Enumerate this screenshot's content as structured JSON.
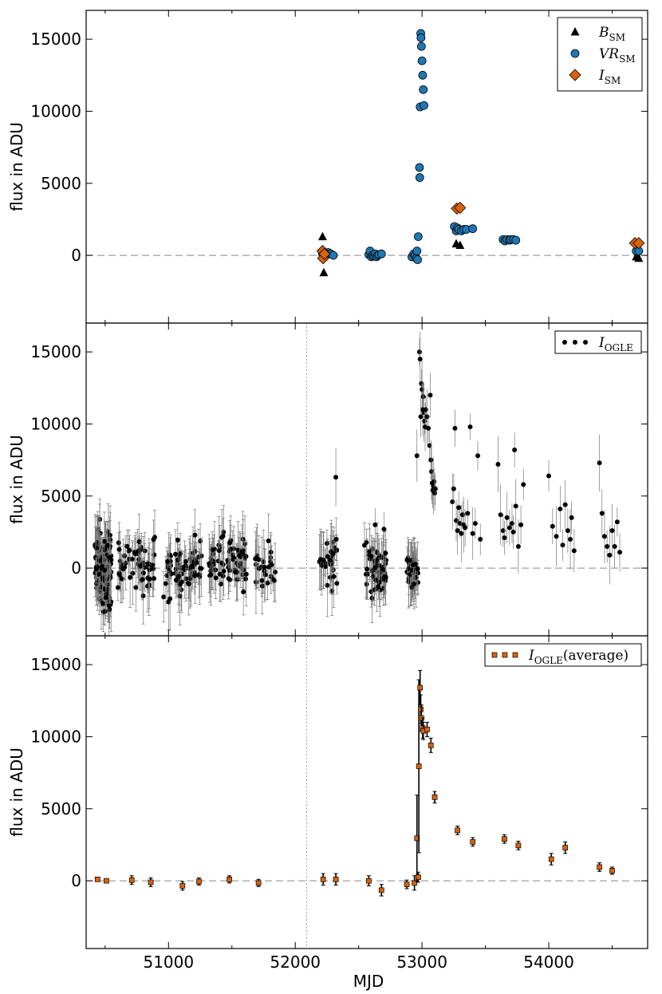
{
  "figure": {
    "xlabel": "MJD",
    "ylabel": "flux in ADU"
  },
  "colors": {
    "vr": "#1f77b4",
    "i_sm": "#d9620b",
    "b_sm": "#000000",
    "ogle": "#000000",
    "ogle_avg": "#d9620b"
  },
  "chart_data": [
    {
      "type": "scatter",
      "panel": "top",
      "xlim": [
        50350,
        54780
      ],
      "ylim": [
        -4700,
        17000
      ],
      "xticks": [
        51000,
        52000,
        53000,
        54000
      ],
      "yticks": [
        0,
        5000,
        10000,
        15000
      ],
      "ylabel": "flux in ADU",
      "grid": false,
      "legend_position": "top-right",
      "reference_lines": [
        {
          "orientation": "horizontal",
          "value": 0,
          "style": "dashed"
        }
      ],
      "series": [
        {
          "name": "B",
          "name_sub": "SM",
          "marker": "triangle",
          "color": "#000000",
          "points": [
            [
              52215,
              1300
            ],
            [
              52225,
              -1200
            ],
            [
              53270,
              800
            ],
            [
              53300,
              700
            ],
            [
              54690,
              -100
            ],
            [
              54710,
              -200
            ]
          ]
        },
        {
          "name": "VR",
          "name_sub": "SM",
          "marker": "circle",
          "color": "#1f77b4",
          "points": [
            [
              52215,
              100
            ],
            [
              52230,
              -100
            ],
            [
              52260,
              200
            ],
            [
              52280,
              100
            ],
            [
              52300,
              0
            ],
            [
              52580,
              50
            ],
            [
              52590,
              300
            ],
            [
              52600,
              -100
            ],
            [
              52610,
              0
            ],
            [
              52620,
              -50
            ],
            [
              52630,
              100
            ],
            [
              52640,
              -100
            ],
            [
              52650,
              0
            ],
            [
              52660,
              50
            ],
            [
              52680,
              100
            ],
            [
              52920,
              -100
            ],
            [
              52935,
              100
            ],
            [
              52945,
              0
            ],
            [
              52955,
              -200
            ],
            [
              52960,
              300
            ],
            [
              52965,
              -300
            ],
            [
              52970,
              1300
            ],
            [
              52980,
              6100
            ],
            [
              52982,
              5400
            ],
            [
              52985,
              10300
            ],
            [
              52990,
              15400
            ],
            [
              52992,
              15100
            ],
            [
              52995,
              14500
            ],
            [
              53000,
              13500
            ],
            [
              53005,
              12500
            ],
            [
              53010,
              11500
            ],
            [
              53015,
              10400
            ],
            [
              53255,
              2000
            ],
            [
              53270,
              1700
            ],
            [
              53280,
              1900
            ],
            [
              53290,
              1800
            ],
            [
              53310,
              1700
            ],
            [
              53330,
              1800
            ],
            [
              53350,
              1800
            ],
            [
              53400,
              1850
            ],
            [
              53640,
              1100
            ],
            [
              53655,
              1000
            ],
            [
              53670,
              1100
            ],
            [
              53690,
              1050
            ],
            [
              53700,
              1100
            ],
            [
              53720,
              1100
            ],
            [
              53740,
              1050
            ],
            [
              54690,
              300
            ],
            [
              54710,
              300
            ]
          ]
        },
        {
          "name": "I",
          "name_sub": "SM",
          "marker": "diamond",
          "color": "#d9620b",
          "points": [
            [
              52215,
              300
            ],
            [
              52220,
              -200
            ],
            [
              52230,
              100
            ],
            [
              53275,
              3250
            ],
            [
              53300,
              3300
            ],
            [
              54680,
              850
            ],
            [
              54710,
              850
            ]
          ]
        }
      ]
    },
    {
      "type": "scatter",
      "panel": "middle",
      "xlim": [
        50350,
        54780
      ],
      "ylim": [
        -4700,
        17000
      ],
      "xticks": [
        51000,
        52000,
        53000,
        54000
      ],
      "yticks": [
        0,
        5000,
        10000,
        15000
      ],
      "ylabel": "flux in ADU",
      "grid": false,
      "legend_position": "top-right",
      "reference_lines": [
        {
          "orientation": "horizontal",
          "value": 0,
          "style": "dashed"
        },
        {
          "orientation": "vertical",
          "value": 52090,
          "style": "dotted"
        }
      ],
      "series": [
        {
          "name": "I",
          "name_sub": "OGLE",
          "marker": "circle",
          "color": "#000000",
          "error_bars": true,
          "seasons": [
            {
              "x": [
                50420,
                50550
              ],
              "center": 0,
              "spread": 2600,
              "n": 150
            },
            {
              "x": [
                50600,
                50900
              ],
              "center": 200,
              "spread": 1800,
              "n": 60
            },
            {
              "x": [
                50960,
                51260
              ],
              "center": 0,
              "spread": 1800,
              "n": 70
            },
            {
              "x": [
                51320,
                51620
              ],
              "center": 500,
              "spread": 1800,
              "n": 70
            },
            {
              "x": [
                51680,
                51850
              ],
              "center": 0,
              "spread": 1500,
              "n": 25
            },
            {
              "x": [
                52190,
                52330
              ],
              "center": 200,
              "spread": 1600,
              "n": 35
            },
            {
              "x": [
                52540,
                52720
              ],
              "center": -300,
              "spread": 1800,
              "n": 55
            },
            {
              "x": [
                52880,
                52970
              ],
              "center": -300,
              "spread": 1200,
              "n": 40
            }
          ],
          "points": [
            [
              52320,
              6300
            ],
            [
              52630,
              3000
            ],
            [
              52700,
              2700
            ],
            [
              52960,
              7800
            ],
            [
              52980,
              15000
            ],
            [
              52985,
              14500
            ],
            [
              52995,
              12800
            ],
            [
              53000,
              12400
            ],
            [
              53010,
              11900
            ],
            [
              53005,
              11000
            ],
            [
              52990,
              10500
            ],
            [
              53015,
              10800
            ],
            [
              53020,
              10200
            ],
            [
              53025,
              9800
            ],
            [
              53030,
              11000
            ],
            [
              53040,
              10500
            ],
            [
              53050,
              9700
            ],
            [
              53060,
              8500
            ],
            [
              53065,
              12000
            ],
            [
              53070,
              7500
            ],
            [
              53075,
              6700
            ],
            [
              53080,
              5900
            ],
            [
              53085,
              5400
            ],
            [
              53090,
              5700
            ],
            [
              53095,
              6000
            ],
            [
              53100,
              5200
            ],
            [
              53105,
              5500
            ],
            [
              53240,
              4600
            ],
            [
              53250,
              5500
            ],
            [
              53260,
              9700
            ],
            [
              53270,
              3300
            ],
            [
              53280,
              2600
            ],
            [
              53290,
              4200
            ],
            [
              53300,
              3100
            ],
            [
              53310,
              2400
            ],
            [
              53320,
              3700
            ],
            [
              53330,
              3000
            ],
            [
              53340,
              2800
            ],
            [
              53360,
              3800
            ],
            [
              53380,
              9800
            ],
            [
              53400,
              2400
            ],
            [
              53420,
              3100
            ],
            [
              53440,
              7800
            ],
            [
              53460,
              2000
            ],
            [
              53600,
              7200
            ],
            [
              53620,
              3700
            ],
            [
              53640,
              2600
            ],
            [
              53650,
              2100
            ],
            [
              53670,
              3500
            ],
            [
              53690,
              2800
            ],
            [
              53710,
              3100
            ],
            [
              53720,
              2500
            ],
            [
              53730,
              8200
            ],
            [
              53740,
              4300
            ],
            [
              53760,
              1500
            ],
            [
              53780,
              3000
            ],
            [
              53800,
              5800
            ],
            [
              54000,
              6400
            ],
            [
              54030,
              2900
            ],
            [
              54060,
              2200
            ],
            [
              54090,
              4100
            ],
            [
              54110,
              1600
            ],
            [
              54130,
              4400
            ],
            [
              54150,
              2600
            ],
            [
              54170,
              2000
            ],
            [
              54180,
              3500
            ],
            [
              54200,
              1200
            ],
            [
              54400,
              7300
            ],
            [
              54420,
              3800
            ],
            [
              54440,
              2200
            ],
            [
              54460,
              1500
            ],
            [
              54480,
              900
            ],
            [
              54500,
              2600
            ],
            [
              54520,
              1500
            ],
            [
              54540,
              3200
            ],
            [
              54560,
              1100
            ]
          ]
        }
      ]
    },
    {
      "type": "scatter",
      "panel": "bottom",
      "xlim": [
        50350,
        54780
      ],
      "ylim": [
        -4700,
        17000
      ],
      "xticks": [
        51000,
        52000,
        53000,
        54000
      ],
      "xlabel": "MJD",
      "yticks": [
        0,
        5000,
        10000,
        15000
      ],
      "ylabel": "flux in ADU",
      "grid": false,
      "legend_position": "top-right",
      "reference_lines": [
        {
          "orientation": "horizontal",
          "value": 0,
          "style": "dashed"
        },
        {
          "orientation": "vertical",
          "value": 52090,
          "style": "dotted"
        }
      ],
      "series": [
        {
          "name": "I",
          "name_sub": "OGLE",
          "name_suffix": "(average)",
          "marker": "square",
          "color": "#d9620b",
          "points": [
            [
              50440,
              100,
              100
            ],
            [
              50510,
              0,
              100
            ],
            [
              50710,
              50,
              300
            ],
            [
              50860,
              -100,
              300
            ],
            [
              51110,
              -350,
              300
            ],
            [
              51240,
              -50,
              250
            ],
            [
              51480,
              100,
              250
            ],
            [
              51710,
              -150,
              250
            ],
            [
              52220,
              100,
              400
            ],
            [
              52320,
              100,
              400
            ],
            [
              52580,
              0,
              350
            ],
            [
              52680,
              -650,
              400
            ],
            [
              52880,
              -250,
              300
            ],
            [
              52940,
              -150,
              500
            ],
            [
              52960,
              2950,
              3000
            ],
            [
              52970,
              250,
              350
            ],
            [
              52975,
              7950,
              6000
            ],
            [
              52985,
              13400,
              1200
            ],
            [
              52990,
              11900,
              1000
            ],
            [
              52995,
              11300,
              900
            ],
            [
              53005,
              10600,
              700
            ],
            [
              53010,
              10400,
              600
            ],
            [
              53040,
              10500,
              500
            ],
            [
              53070,
              9400,
              500
            ],
            [
              53100,
              5800,
              400
            ],
            [
              53280,
              3500,
              300
            ],
            [
              53400,
              2700,
              300
            ],
            [
              53650,
              2900,
              300
            ],
            [
              53760,
              2450,
              300
            ],
            [
              54020,
              1500,
              400
            ],
            [
              54130,
              2300,
              400
            ],
            [
              54400,
              950,
              300
            ],
            [
              54500,
              700,
              250
            ]
          ]
        }
      ]
    }
  ]
}
